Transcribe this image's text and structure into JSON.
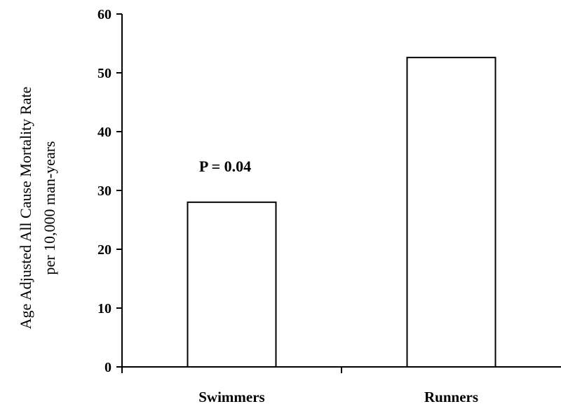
{
  "chart_data": {
    "type": "bar",
    "categories": [
      "Swimmers",
      "Runners"
    ],
    "values": [
      28,
      52.6
    ],
    "ylabel_lines": [
      "Age Adjusted All Cause Mortality Rate",
      "per 10,000 man-years"
    ],
    "ylim": [
      0,
      60
    ],
    "yticks": [
      "0",
      "10",
      "20",
      "30",
      "40",
      "50",
      "60"
    ],
    "annotation": "P = 0.04",
    "grid": false,
    "bar_fill": "#ffffff",
    "bar_stroke": "#000000"
  }
}
